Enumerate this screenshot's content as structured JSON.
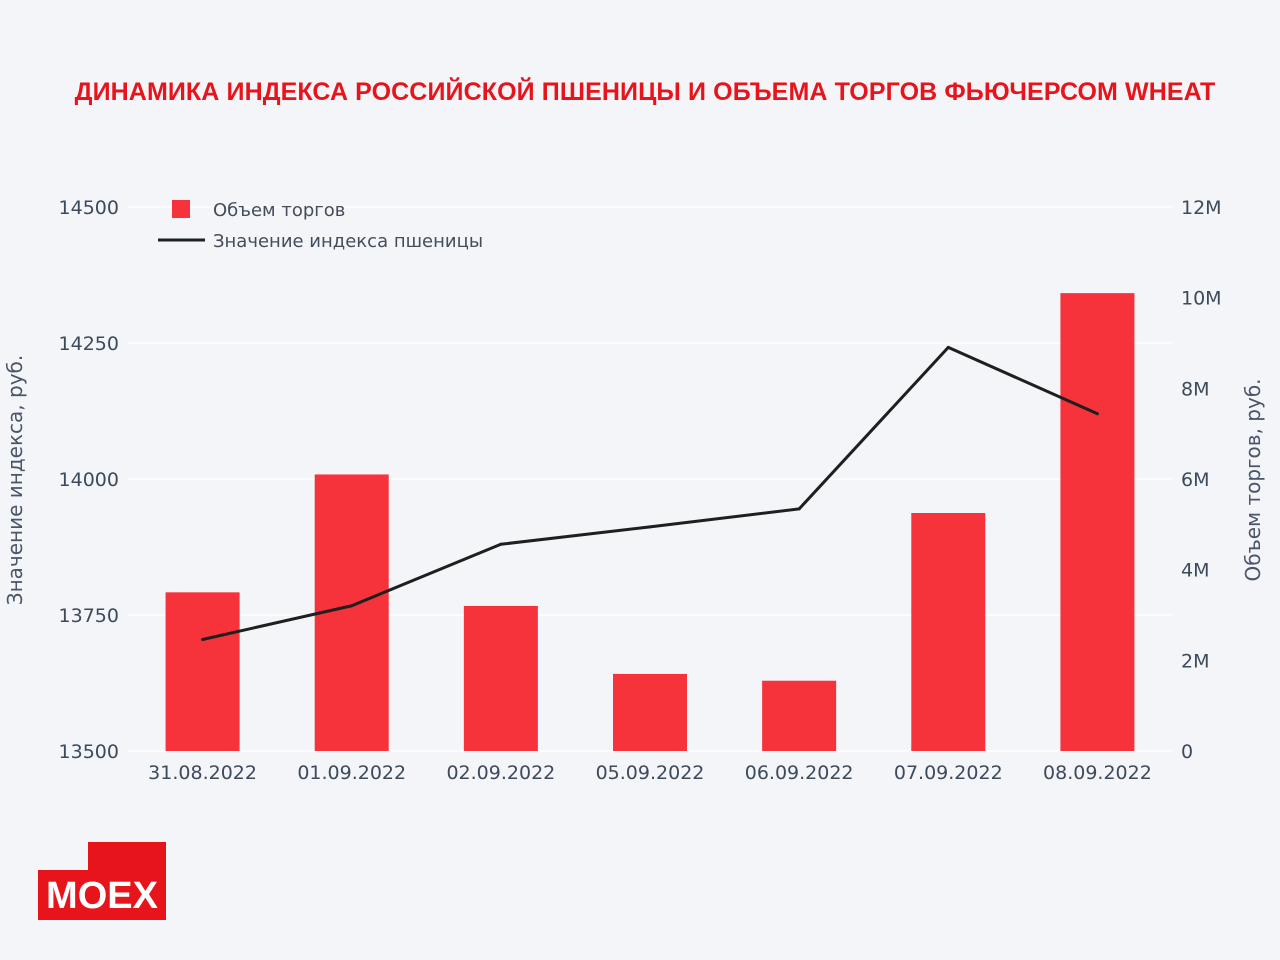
{
  "colors": {
    "bar": "#f6323a",
    "line": "#1f1f1f",
    "title": "#e8141c",
    "background": "#f3f5f8"
  },
  "logo": {
    "text": "MOEX"
  },
  "chart_data": {
    "type": "bar",
    "title": "ДИНАМИКА ИНДЕКСА РОССИЙСКОЙ ПШЕНИЦЫ И ОБЪЕМА ТОРГОВ ФЬЮЧЕРСОМ WHEAT",
    "categories": [
      "31.08.2022",
      "01.09.2022",
      "02.09.2022",
      "05.09.2022",
      "06.09.2022",
      "07.09.2022",
      "08.09.2022"
    ],
    "series": [
      {
        "name": "Объем торгов",
        "type": "bar",
        "axis": "right",
        "values": [
          3500000,
          6100000,
          3200000,
          1700000,
          1550000,
          5250000,
          10100000
        ]
      },
      {
        "name": "Значение индекса пшеницы",
        "type": "line",
        "axis": "left",
        "values": [
          13705,
          13767,
          13880,
          13912,
          13945,
          14242,
          14120
        ]
      }
    ],
    "y_left": {
      "label": "Значение индекса, руб.",
      "range": [
        13500,
        14500
      ],
      "ticks": [
        "13500",
        "13750",
        "14000",
        "14250",
        "14500"
      ],
      "tick_values": [
        13500,
        13750,
        14000,
        14250,
        14500
      ]
    },
    "y_right": {
      "label": "Объем торгов, руб.",
      "range": [
        0,
        12000000
      ],
      "ticks": [
        "0",
        "2M",
        "4M",
        "6M",
        "8M",
        "10M",
        "12M"
      ],
      "tick_values": [
        0,
        2000000,
        4000000,
        6000000,
        8000000,
        10000000,
        12000000
      ]
    },
    "grid": true,
    "legend_position": "top-left"
  }
}
